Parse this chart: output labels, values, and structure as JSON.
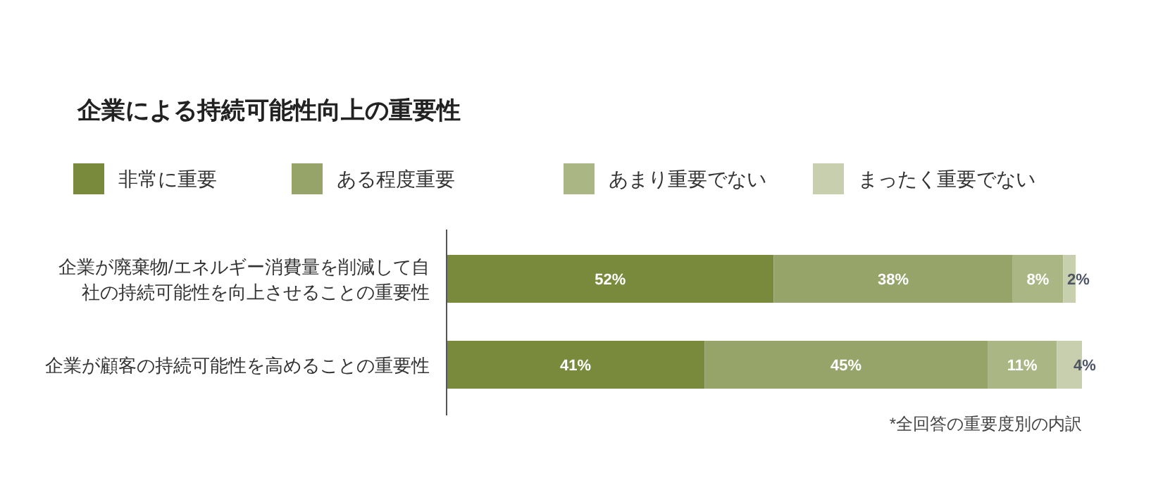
{
  "chart_data": {
    "type": "bar",
    "orientation": "horizontal",
    "stacked": true,
    "title": "企業による持続可能性向上の重要性",
    "categories": [
      "企業が廃棄物/エネルギー消費量を削減して自社の持続可能性を向上させることの重要性",
      "企業が顧客の持続可能性を高めることの重要性"
    ],
    "xlim": [
      0,
      101
    ],
    "legend": "top",
    "series": [
      {
        "name": "非常に重要",
        "color": "#7a8a3c",
        "values": [
          52,
          41
        ],
        "value_labels": [
          "52%",
          "41%"
        ]
      },
      {
        "name": "ある程度重要",
        "color": "#96a46a",
        "values": [
          38,
          45
        ],
        "value_labels": [
          "38%",
          "45%"
        ]
      },
      {
        "name": "あまり重要でない",
        "color": "#aab683",
        "values": [
          8,
          11
        ],
        "value_labels": [
          "8%",
          "11%"
        ]
      },
      {
        "name": "まったく重要でない",
        "color": "#c8cfae",
        "values": [
          2,
          4
        ],
        "value_labels": [
          "2%",
          "4%"
        ]
      }
    ],
    "annotations": [
      "*全回答の重要度別の内訳"
    ]
  }
}
